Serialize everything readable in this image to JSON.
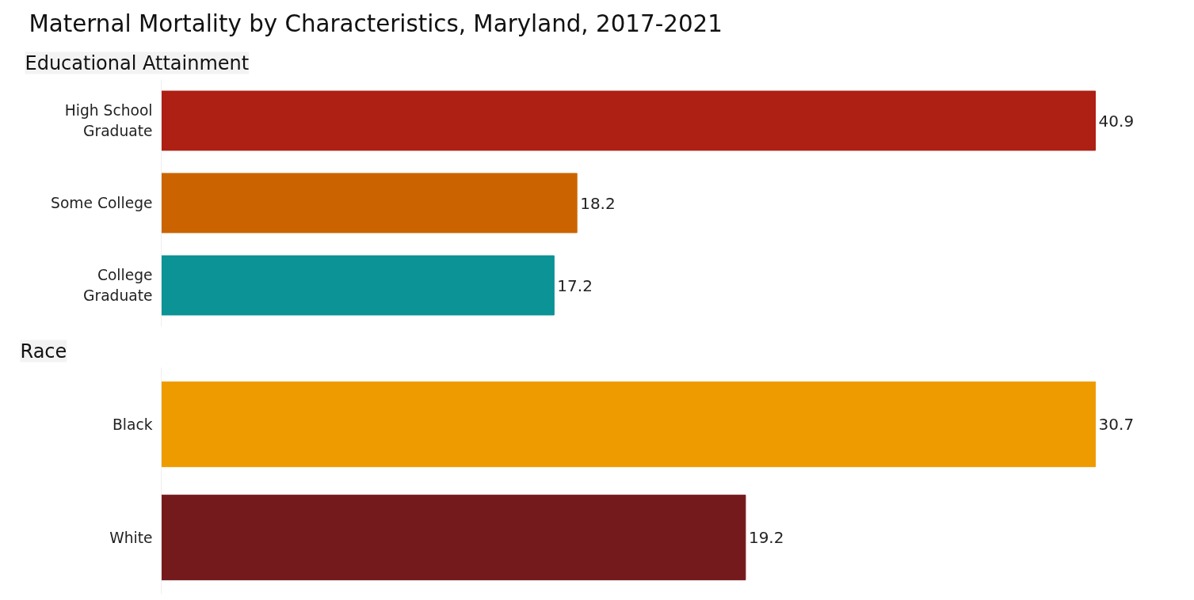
{
  "chart_data": [
    {
      "type": "bar",
      "orientation": "horizontal",
      "title": "Maternal Mortality by Characteristics, Maryland, 2017-2021",
      "subtitle": "Educational Attainment",
      "categories": [
        "High School Graduate",
        "Some College",
        "College Graduate"
      ],
      "values": [
        40.9,
        18.2,
        17.2
      ],
      "colors": [
        "#ae1f14",
        "#cb6400",
        "#0b9396"
      ],
      "data_labels": true,
      "tick_labels": "y",
      "grid": false
    },
    {
      "type": "bar",
      "orientation": "horizontal",
      "subtitle": "Race",
      "categories": [
        "Black",
        "White"
      ],
      "values": [
        30.7,
        19.2
      ],
      "colors": [
        "#ee9b00",
        "#751a1c"
      ],
      "data_labels": true,
      "tick_labels": "y",
      "grid": false
    }
  ]
}
